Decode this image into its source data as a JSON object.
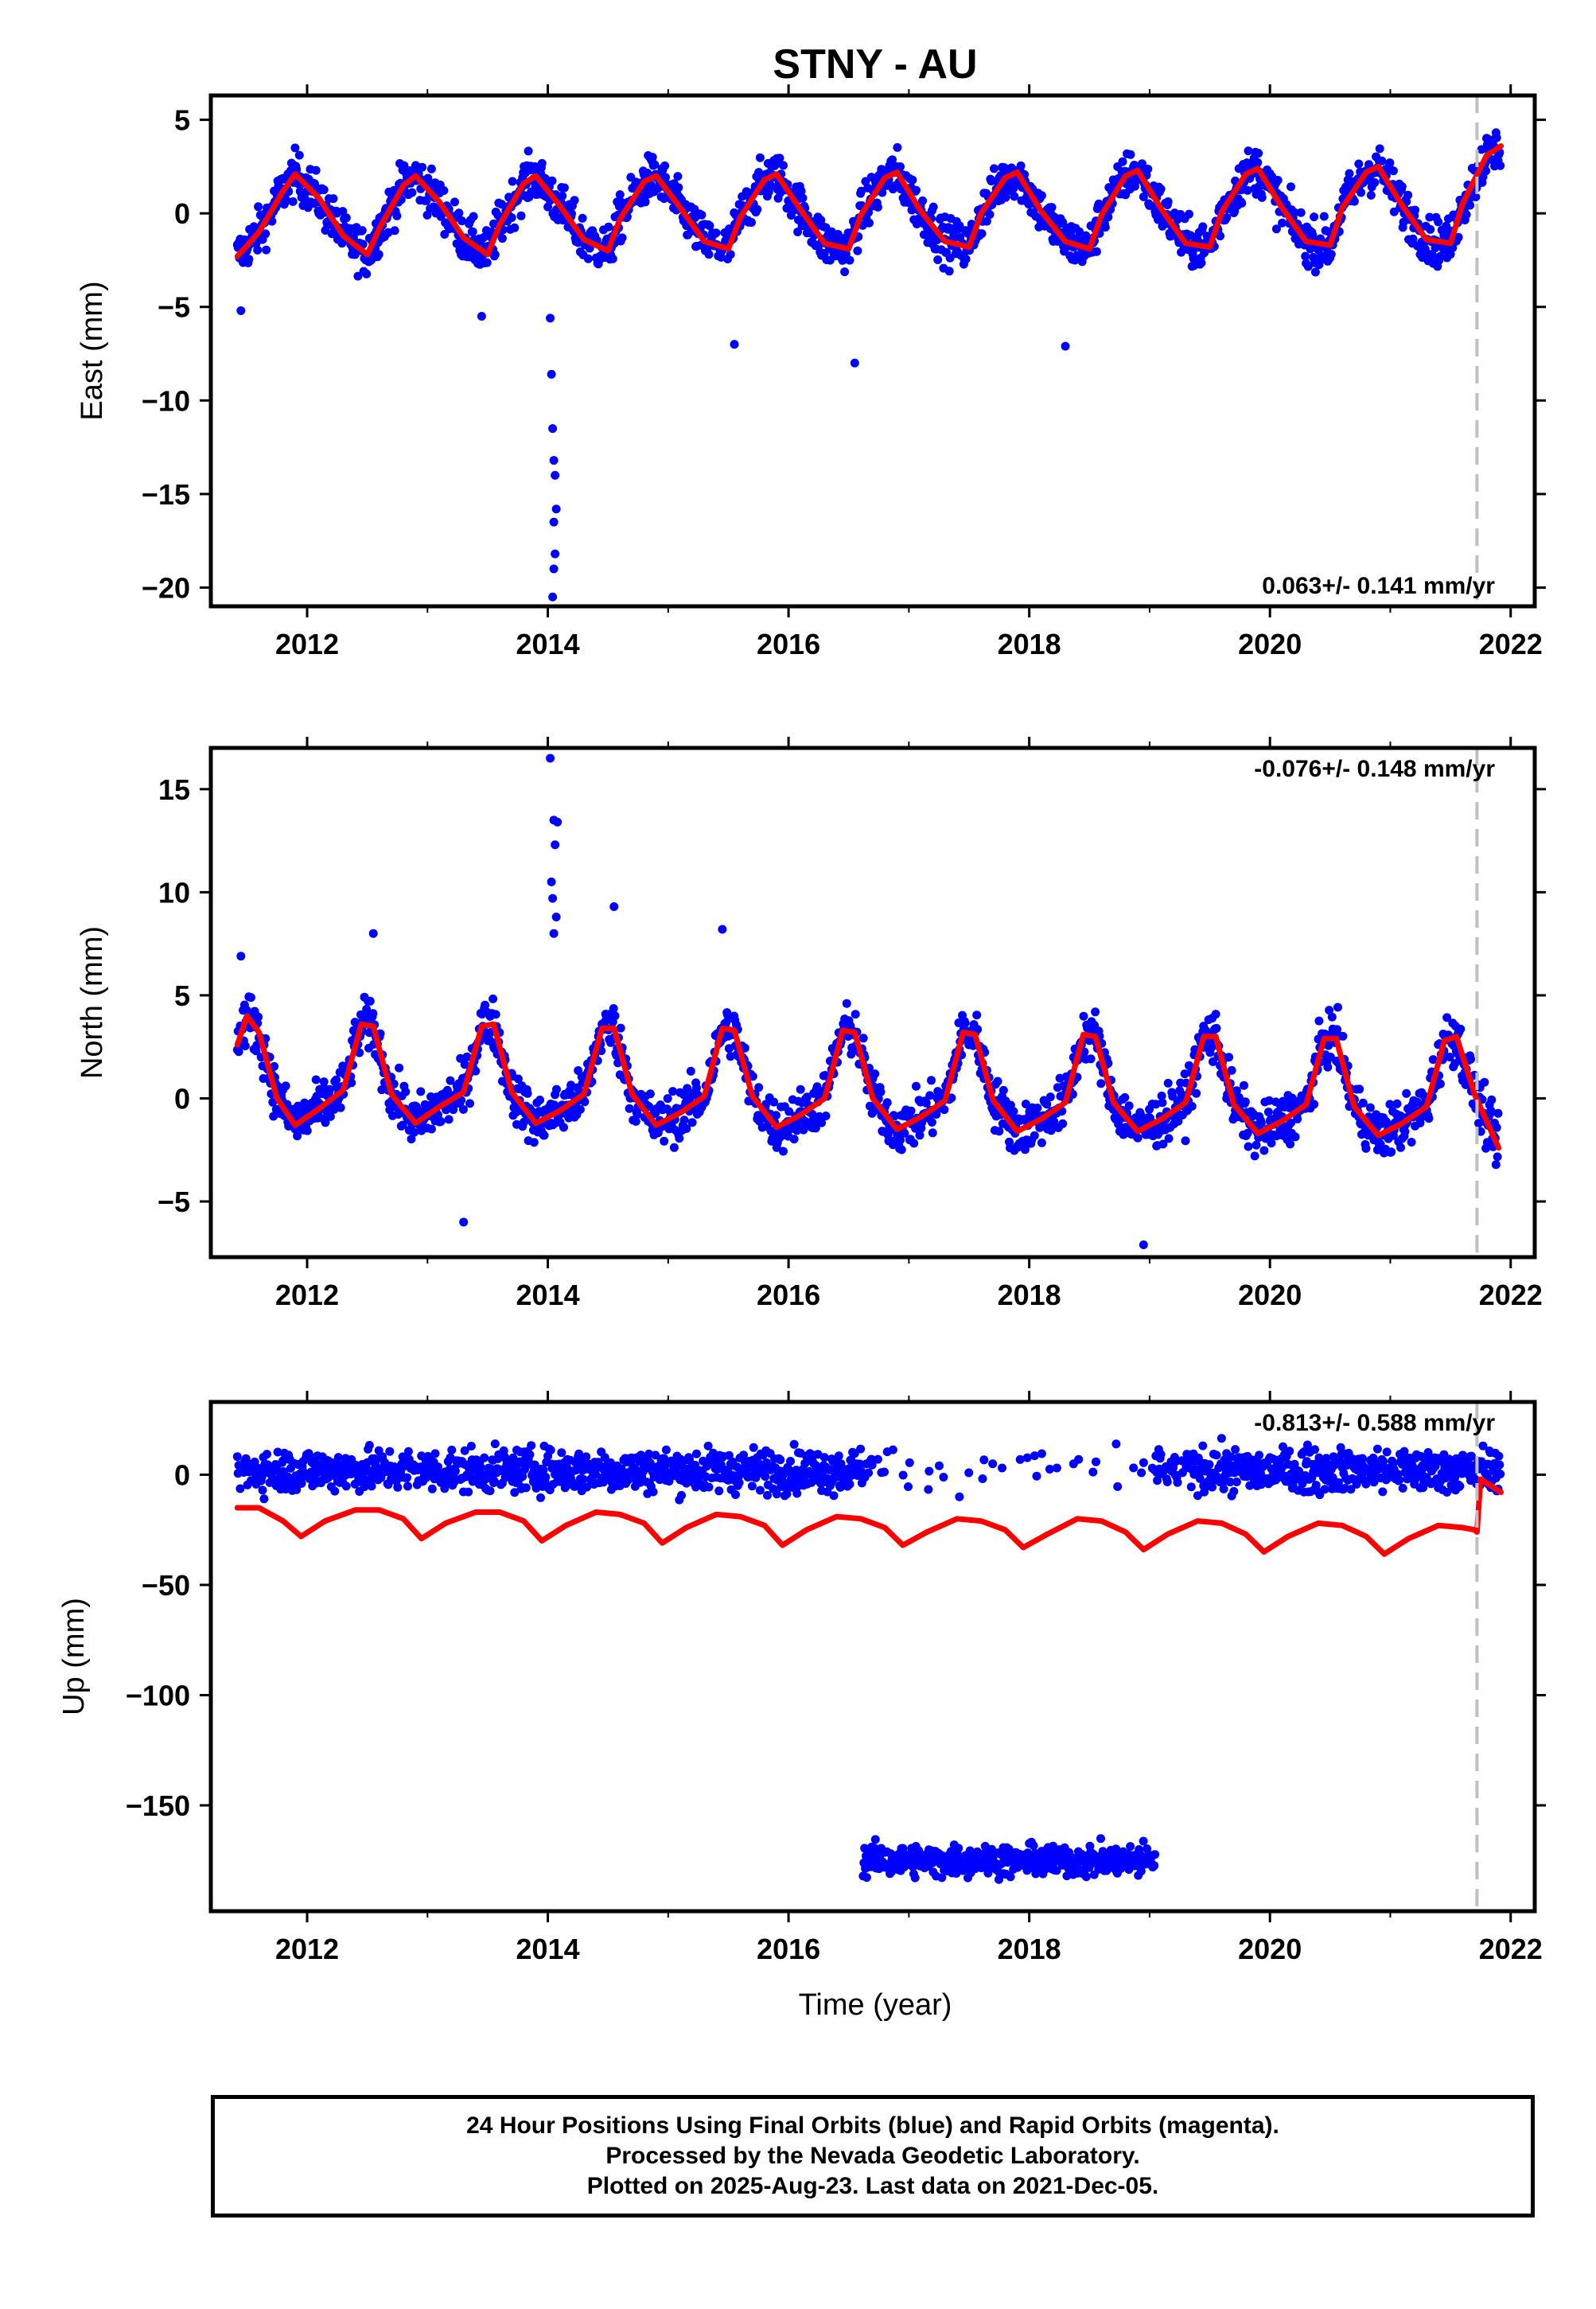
{
  "title": "STNY - AU",
  "xlabel": "Time (year)",
  "footer": {
    "line1": "24 Hour Positions Using Final Orbits (blue) and Rapid Orbits (magenta).",
    "line2": "Processed by the Nevada Geodetic Laboratory.",
    "line3": "Plotted on 2025-Aug-23. Last data on 2021-Dec-05."
  },
  "colors": {
    "final_orbits": "#0000ff",
    "model_fit": "#ff0000",
    "step_marker": "#c0c0c0"
  },
  "chart_data": [
    {
      "type": "scatter",
      "ylabel": "East (mm)",
      "rate_label": "0.063+/- 0.141 mm/yr",
      "xlim": [
        2011.2,
        2022.2
      ],
      "ylim": [
        -21,
        6.3
      ],
      "xticks": [
        2012,
        2014,
        2016,
        2018,
        2020,
        2022
      ],
      "yticks": [
        5,
        0,
        -5,
        -10,
        -15,
        -20
      ],
      "step_marker_x": 2021.72,
      "series": [
        {
          "x": [
            2011.42,
            2011.6,
            2011.8,
            2011.9,
            2012.1,
            2012.3,
            2012.5,
            2012.6,
            2012.8,
            2012.9,
            2013.1,
            2013.3,
            2013.5,
            2013.6,
            2013.8,
            2013.9,
            2014.1,
            2014.3,
            2014.5,
            2014.6,
            2014.8,
            2014.9,
            2015.1,
            2015.3,
            2015.5,
            2015.6,
            2015.8,
            2015.9,
            2016.1,
            2016.3,
            2016.5,
            2016.6,
            2016.8,
            2016.9,
            2017.1,
            2017.3,
            2017.5,
            2017.6,
            2017.8,
            2017.9,
            2018.1,
            2018.3,
            2018.5,
            2018.6,
            2018.8,
            2018.9,
            2019.1,
            2019.3,
            2019.5,
            2019.6,
            2019.8,
            2019.9,
            2020.1,
            2020.3,
            2020.5,
            2020.6,
            2020.8,
            2020.9,
            2021.1,
            2021.3,
            2021.5,
            2021.6,
            2021.8,
            2021.92
          ],
          "y": [
            -2.3,
            -1.0,
            1.2,
            2.1,
            0.8,
            -1.2,
            -2.2,
            -0.8,
            1.5,
            2.0,
            0.6,
            -1.3,
            -2.2,
            -0.6,
            1.6,
            2.0,
            0.4,
            -1.4,
            -2.0,
            -0.3,
            1.7,
            2.0,
            0.3,
            -1.5,
            -1.9,
            -0.2,
            1.8,
            2.1,
            0.2,
            -1.6,
            -1.9,
            -0.1,
            1.9,
            2.2,
            0.1,
            -1.5,
            -1.8,
            0.0,
            1.9,
            2.2,
            0.1,
            -1.5,
            -1.9,
            -0.1,
            2.0,
            2.3,
            0.2,
            -1.6,
            -1.8,
            0.1,
            2.1,
            2.4,
            0.3,
            -1.5,
            -1.7,
            0.3,
            2.2,
            2.5,
            0.4,
            -1.4,
            -1.6,
            0.5,
            3.1,
            3.6
          ],
          "outliers": [
            {
              "x": 2014.04,
              "y": -20.5
            },
            {
              "x": 2014.05,
              "y": -19.0
            },
            {
              "x": 2014.06,
              "y": -18.2
            },
            {
              "x": 2014.05,
              "y": -16.5
            },
            {
              "x": 2014.07,
              "y": -15.8
            },
            {
              "x": 2014.06,
              "y": -14.0
            },
            {
              "x": 2014.05,
              "y": -13.2
            },
            {
              "x": 2014.04,
              "y": -11.5
            },
            {
              "x": 2014.03,
              "y": -8.6
            },
            {
              "x": 2014.02,
              "y": -5.6
            },
            {
              "x": 2013.45,
              "y": -5.5
            },
            {
              "x": 2015.55,
              "y": -7.0
            },
            {
              "x": 2016.55,
              "y": -8.0
            },
            {
              "x": 2018.3,
              "y": -7.1
            },
            {
              "x": 2011.45,
              "y": -5.2
            }
          ]
        }
      ]
    },
    {
      "type": "scatter",
      "ylabel": "North (mm)",
      "rate_label": "-0.076+/- 0.148 mm/yr",
      "xlim": [
        2011.2,
        2022.2
      ],
      "ylim": [
        -7.7,
        17.0
      ],
      "xticks": [
        2012,
        2014,
        2016,
        2018,
        2020,
        2022
      ],
      "yticks": [
        15,
        10,
        5,
        0,
        -5
      ],
      "step_marker_x": 2021.72,
      "series": [
        {
          "x": [
            2011.42,
            2011.5,
            2011.6,
            2011.75,
            2011.9,
            2012.1,
            2012.3,
            2012.45,
            2012.55,
            2012.7,
            2012.9,
            2013.1,
            2013.3,
            2013.45,
            2013.55,
            2013.7,
            2013.9,
            2014.1,
            2014.3,
            2014.45,
            2014.55,
            2014.7,
            2014.9,
            2015.1,
            2015.3,
            2015.45,
            2015.55,
            2015.7,
            2015.9,
            2016.1,
            2016.3,
            2016.45,
            2016.55,
            2016.7,
            2016.9,
            2017.1,
            2017.3,
            2017.45,
            2017.55,
            2017.7,
            2017.9,
            2018.1,
            2018.3,
            2018.45,
            2018.55,
            2018.7,
            2018.9,
            2019.1,
            2019.3,
            2019.45,
            2019.55,
            2019.7,
            2019.9,
            2020.1,
            2020.3,
            2020.45,
            2020.55,
            2020.7,
            2020.9,
            2021.1,
            2021.3,
            2021.45,
            2021.55,
            2021.7,
            2021.9
          ],
          "y": [
            2.6,
            4.0,
            3.2,
            0.0,
            -1.3,
            -0.5,
            0.4,
            3.6,
            3.5,
            0.2,
            -1.2,
            -0.4,
            0.3,
            3.5,
            3.6,
            0.3,
            -1.2,
            -0.6,
            0.2,
            3.4,
            3.4,
            0.2,
            -1.3,
            -0.7,
            0.1,
            3.4,
            3.3,
            0.1,
            -1.4,
            -0.8,
            0.0,
            3.3,
            3.2,
            0.0,
            -1.5,
            -0.9,
            -0.1,
            3.2,
            3.1,
            -0.1,
            -1.6,
            -1.0,
            -0.2,
            3.1,
            3.0,
            -0.2,
            -1.6,
            -1.0,
            -0.2,
            3.0,
            3.0,
            -0.3,
            -1.7,
            -1.1,
            -0.3,
            2.9,
            2.9,
            -0.4,
            -1.8,
            -1.2,
            -0.4,
            2.8,
            3.0,
            0.2,
            -2.4
          ],
          "outliers": [
            {
              "x": 2014.02,
              "y": 16.5
            },
            {
              "x": 2014.05,
              "y": 13.5
            },
            {
              "x": 2014.08,
              "y": 13.4
            },
            {
              "x": 2014.06,
              "y": 12.3
            },
            {
              "x": 2014.03,
              "y": 10.5
            },
            {
              "x": 2014.04,
              "y": 9.7
            },
            {
              "x": 2014.07,
              "y": 8.8
            },
            {
              "x": 2014.05,
              "y": 8.0
            },
            {
              "x": 2014.55,
              "y": 9.3
            },
            {
              "x": 2015.45,
              "y": 8.2
            },
            {
              "x": 2012.55,
              "y": 8.0
            },
            {
              "x": 2013.3,
              "y": -6.0
            },
            {
              "x": 2018.95,
              "y": -7.1
            },
            {
              "x": 2011.45,
              "y": 6.9
            }
          ]
        }
      ]
    },
    {
      "type": "scatter",
      "ylabel": "Up (mm)",
      "rate_label": "-0.813+/- 0.588 mm/yr",
      "xlim": [
        2011.2,
        2022.2
      ],
      "ylim": [
        -198,
        33
      ],
      "xticks": [
        2012,
        2014,
        2016,
        2018,
        2020,
        2022
      ],
      "yticks": [
        0,
        -50,
        -100,
        -150
      ],
      "step_marker_x": 2021.72,
      "series": [
        {
          "x": [
            2011.42,
            2011.6,
            2011.8,
            2011.95,
            2012.15,
            2012.4,
            2012.6,
            2012.8,
            2012.95,
            2013.15,
            2013.4,
            2013.6,
            2013.8,
            2013.95,
            2014.15,
            2014.4,
            2014.6,
            2014.8,
            2014.95,
            2015.15,
            2015.4,
            2015.6,
            2015.8,
            2015.95,
            2016.15,
            2016.4,
            2016.6,
            2016.8,
            2016.95,
            2017.15,
            2017.4,
            2017.6,
            2017.8,
            2017.95,
            2018.15,
            2018.4,
            2018.6,
            2018.8,
            2018.95,
            2019.15,
            2019.4,
            2019.6,
            2019.8,
            2019.95,
            2020.15,
            2020.4,
            2020.6,
            2020.8,
            2020.95,
            2021.15,
            2021.4,
            2021.6,
            2021.7,
            2021.72,
            2021.75,
            2021.92
          ],
          "y": [
            -15,
            -15,
            -21,
            -28,
            -21,
            -16,
            -16,
            -20,
            -29,
            -22,
            -17,
            -17,
            -21,
            -30,
            -23,
            -17,
            -18,
            -22,
            -31,
            -24,
            -18,
            -19,
            -23,
            -32,
            -25,
            -19,
            -20,
            -24,
            -32,
            -26,
            -20,
            -21,
            -25,
            -33,
            -27,
            -20,
            -21,
            -26,
            -34,
            -27,
            -21,
            -22,
            -27,
            -35,
            -28,
            -22,
            -23,
            -28,
            -36,
            -29,
            -23,
            -24,
            -25,
            -26,
            -2,
            -8
          ]
        }
      ],
      "data_band_main": {
        "x_start": 2011.42,
        "x_end": 2021.92,
        "y_center": 2,
        "y_spread": 7
      },
      "data_band_offset": {
        "x_start": 2016.62,
        "x_end": 2019.05,
        "y_center": -175,
        "y_spread": 5
      },
      "gaps": [
        [
          2016.62,
          2019.05
        ]
      ]
    }
  ]
}
